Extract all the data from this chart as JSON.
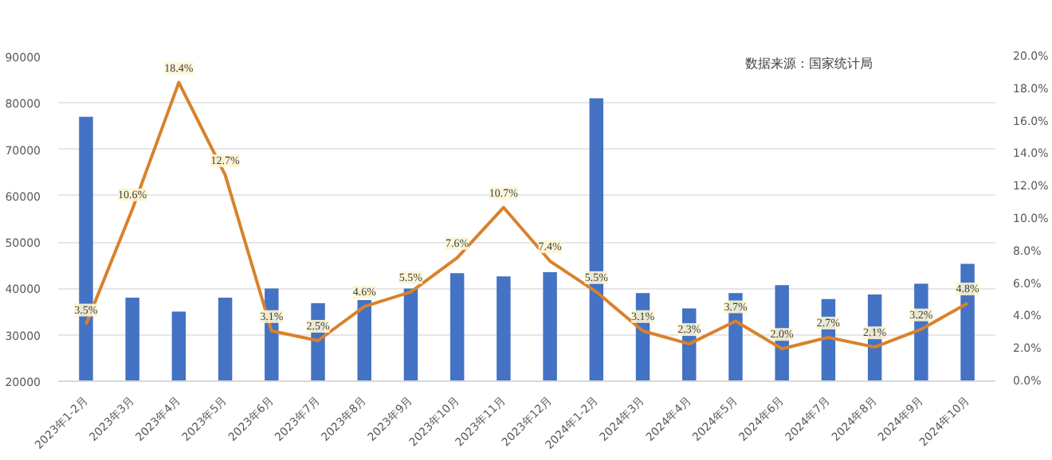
{
  "chart_data": {
    "type": "bar",
    "categories": [
      "2023年1-2月",
      "2023年3月",
      "2023年4月",
      "2023年5月",
      "2023年6月",
      "2023年7月",
      "2023年8月",
      "2023年9月",
      "2023年10月",
      "2023年11月",
      "2023年12月",
      "2024年1-2月",
      "2024年3月",
      "2024年4月",
      "2024年5月",
      "2024年6月",
      "2024年7月",
      "2024年8月",
      "2024年9月",
      "2024年10月"
    ],
    "series": [
      {
        "color": "#4472c4",
        "values": [
          77000,
          38000,
          35000,
          38000,
          40000,
          36800,
          37500,
          40000,
          43300,
          42600,
          43500,
          81000,
          39000,
          35700,
          39000,
          40700,
          37700,
          38700,
          41000,
          45300
        ]
      },
      {
        "type": "line",
        "axis": "y2",
        "color": "#d9822b",
        "values": [
          3.5,
          10.6,
          18.4,
          12.7,
          3.1,
          2.5,
          4.6,
          5.5,
          7.6,
          10.7,
          7.4,
          5.5,
          3.1,
          2.3,
          3.7,
          2.0,
          2.7,
          2.1,
          3.2,
          4.8
        ],
        "value_labels": [
          "3.5%",
          "10.6%",
          "18.4%",
          "12.7%",
          "3.1%",
          "2.5%",
          "4.6%",
          "5.5%",
          "7.6%",
          "10.7%",
          "7.4%",
          "5.5%",
          "3.1%",
          "2.3%",
          "3.7%",
          "2.0%",
          "2.7%",
          "2.1%",
          "3.2%",
          "4.8%"
        ]
      }
    ],
    "ylim": [
      20000,
      90000
    ],
    "yticks": [
      20000,
      30000,
      40000,
      50000,
      60000,
      70000,
      80000,
      90000
    ],
    "y2lim": [
      0,
      20
    ],
    "y2ticks": [
      {
        "value": 0,
        "label": "0.0%"
      },
      {
        "value": 2,
        "label": "2.0%"
      },
      {
        "value": 4,
        "label": "4.0%"
      },
      {
        "value": 6,
        "label": "6.0%"
      },
      {
        "value": 8,
        "label": "8.0%"
      },
      {
        "value": 10,
        "label": "10.0%"
      },
      {
        "value": 12,
        "label": "12.0%"
      },
      {
        "value": 14,
        "label": "14.0%"
      },
      {
        "value": 16,
        "label": "16.0%"
      },
      {
        "value": 18,
        "label": "18.0%"
      },
      {
        "value": 20,
        "label": "20.0%"
      }
    ],
    "grid": "y",
    "marker": "none",
    "line_style": "solid",
    "annotations": [
      "数据来源：国家统计局"
    ]
  }
}
